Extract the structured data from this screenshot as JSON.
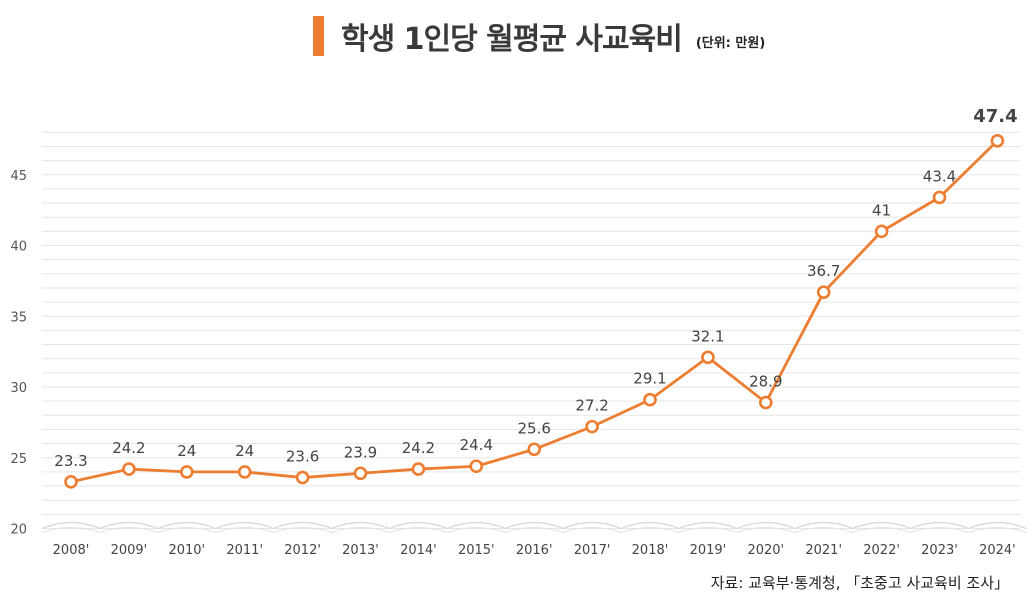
{
  "header": {
    "title": "학생 1인당 월평균 사교육비",
    "unit": "(단위: 만원)"
  },
  "source": "자료: 교육부·통계청, 「초중고 사교육비 조사」",
  "colors": {
    "accent": "#ED7D31",
    "grid": "#e6e6e6"
  },
  "chart_data": {
    "type": "line",
    "title": "학생 1인당 월평균 사교육비",
    "x": [
      "2008'",
      "2009'",
      "2010'",
      "2011'",
      "2012'",
      "2013'",
      "2014'",
      "2015'",
      "2016'",
      "2017'",
      "2018'",
      "2019'",
      "2020'",
      "2021'",
      "2022'",
      "2023'",
      "2024'"
    ],
    "series": [
      {
        "values": [
          23.3,
          24.2,
          24,
          24,
          23.6,
          23.9,
          24.2,
          24.4,
          25.6,
          27.2,
          29.1,
          32.1,
          28.9,
          36.7,
          41,
          43.4,
          47.4
        ]
      }
    ],
    "data_labels": [
      "23.3",
      "24.2",
      "24",
      "24",
      "23.6",
      "23.9",
      "24.2",
      "24.4",
      "25.6",
      "27.2",
      "29.1",
      "32.1",
      "28.9",
      "36.7",
      "41",
      "43.4",
      "47.4"
    ],
    "yticks": [
      20,
      25,
      30,
      35,
      40,
      45
    ],
    "ylim": [
      20,
      48.5
    ],
    "grid": true,
    "legend": "none"
  }
}
